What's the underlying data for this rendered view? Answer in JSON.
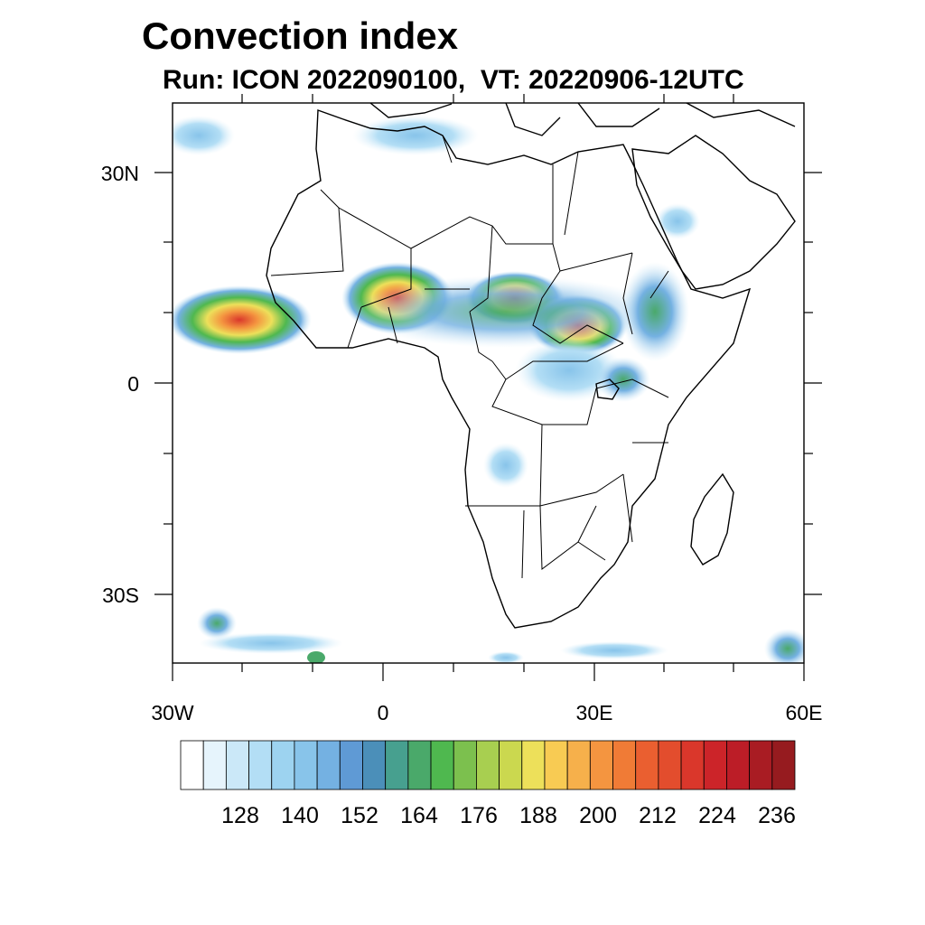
{
  "title": "Convection index",
  "subtitle": "Run: ICON 2022090100,  VT: 20220906-12UTC",
  "axes": {
    "lat_labels": [
      "30N",
      "0",
      "30S"
    ],
    "lon_labels": [
      "30W",
      "0",
      "30E",
      "60E"
    ]
  },
  "colorbar": {
    "colors": [
      "#ffffff",
      "#e6f4fc",
      "#cbe8f8",
      "#b3def5",
      "#9dd3f0",
      "#88c4ea",
      "#74b1e2",
      "#5f9ad5",
      "#4b8fb9",
      "#47a08f",
      "#4aa96a",
      "#4fb84f",
      "#7cc04e",
      "#a8cf50",
      "#cbd84f",
      "#ede05a",
      "#f8cb53",
      "#f6b04b",
      "#f49540",
      "#f07b36",
      "#ea5f30",
      "#e34d2d",
      "#da372b",
      "#cc2429",
      "#bc1d27",
      "#a91c23",
      "#961b1f"
    ],
    "tick_labels": [
      "128",
      "140",
      "152",
      "164",
      "176",
      "188",
      "200",
      "212",
      "224",
      "236"
    ]
  }
}
